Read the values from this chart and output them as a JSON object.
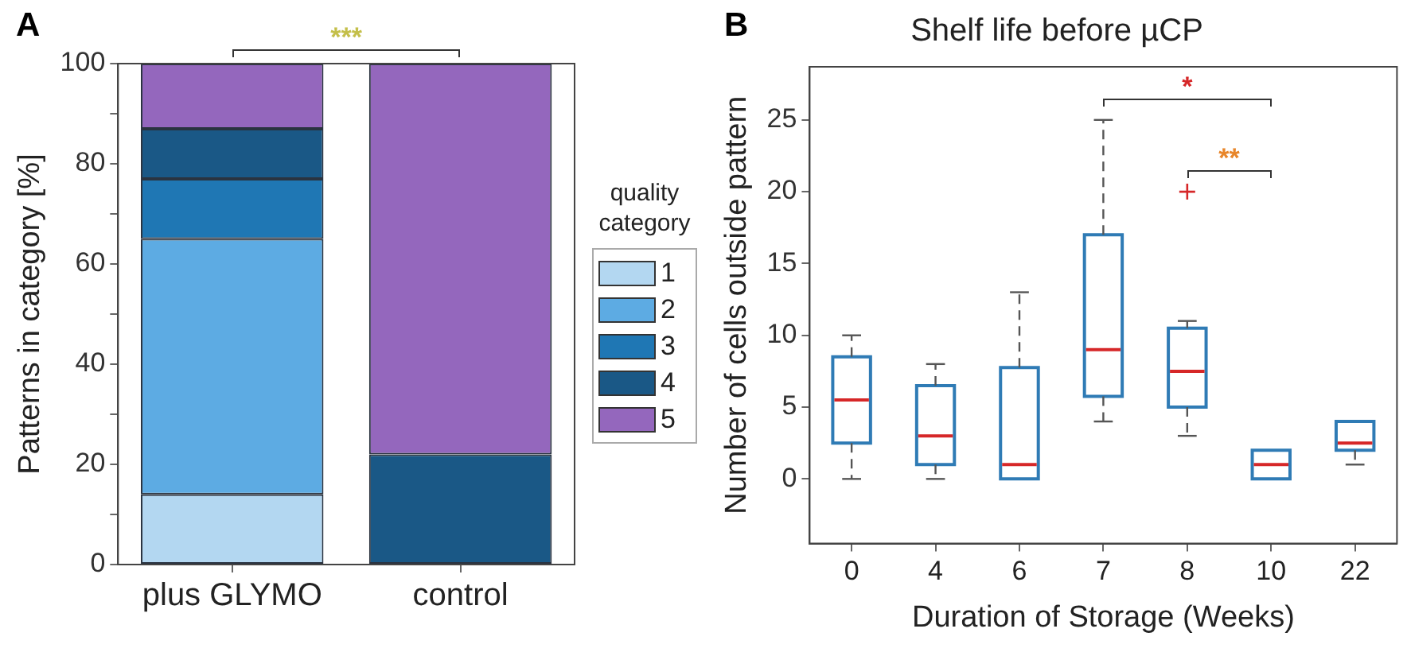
{
  "chart_data": [
    {
      "type": "bar",
      "stacked": true,
      "categories": [
        "plus GLYMO",
        "control"
      ],
      "ylabel": "Patterns in category [%]",
      "ylim": [
        0,
        100
      ],
      "yticks": [
        0,
        {
          "value": 10,
          "label": null
        },
        20,
        {
          "value": 30,
          "label": null
        },
        40,
        {
          "value": 50,
          "label": null
        },
        60,
        {
          "value": 70,
          "label": null
        },
        80,
        {
          "value": 90,
          "label": null
        },
        100
      ],
      "grid": false,
      "legend": "right",
      "legend_title": "quality category",
      "series": [
        {
          "name": "1",
          "color": "#b3d7f1",
          "values": [
            14,
            0
          ]
        },
        {
          "name": "2",
          "color": "#5dabe3",
          "values": [
            51,
            0
          ]
        },
        {
          "name": "3",
          "color": "#1f77b4",
          "values": [
            12,
            0
          ]
        },
        {
          "name": "4",
          "color": "#1a5886",
          "values": [
            10,
            22
          ]
        },
        {
          "name": "5",
          "color": "#9467bd",
          "values": [
            13,
            78
          ]
        }
      ],
      "annotations": [
        "A",
        "***"
      ]
    },
    {
      "type": "box",
      "title": "Shelf life before µCP",
      "xlabel": "Duration of Storage (Weeks)",
      "ylabel": "Number of cells outside pattern",
      "categories": [
        "0",
        "4",
        "6",
        "7",
        "8",
        "10",
        "22"
      ],
      "ylim": [
        -4.5,
        28.7
      ],
      "yticks": [
        0,
        5,
        10,
        15,
        20,
        25
      ],
      "grid": false,
      "series": [
        {
          "color": "#2f7bb5",
          "boxes": [
            {
              "low": 0,
              "q1": 2.5,
              "median": 5.5,
              "q3": 8.5,
              "high": 10
            },
            {
              "low": 0,
              "q1": 1,
              "median": 3,
              "q3": 6.5,
              "high": 8
            },
            {
              "low": 0,
              "q1": 0,
              "median": 1,
              "q3": 7.75,
              "high": 13
            },
            {
              "low": 4,
              "q1": 5.75,
              "median": 9,
              "q3": 17,
              "high": 25
            },
            {
              "low": 3,
              "q1": 5,
              "median": 7.5,
              "q3": 10.5,
              "high": 11,
              "outliers": [
                20
              ]
            },
            {
              "low": 0,
              "q1": 0,
              "median": 1,
              "q3": 2,
              "high": 2
            },
            {
              "low": 1,
              "q1": 2,
              "median": 2.5,
              "q3": 4,
              "high": 4
            }
          ]
        }
      ],
      "annotations": [
        "B",
        "*",
        "**"
      ]
    }
  ]
}
